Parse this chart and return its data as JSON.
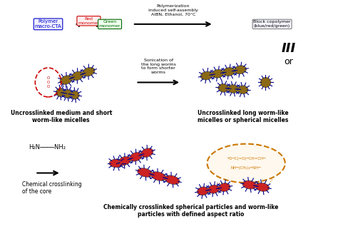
{
  "title": "",
  "bg_color": "#ffffff",
  "figsize": [
    4.74,
    3.21
  ],
  "dpi": 100,
  "top_reaction_arrow_text": "Polymerization\ninduced self-assembly\nAIBN, Ethanol, 70°C",
  "middle_arrow_text": "Sonication of\nthe long worms\nto form shorter\nworms",
  "bottom_arrow_text": "Chemical crosslinking\nof the core",
  "label_uncrosslinked_short": "Uncrosslinked medium and short\nworm-like micelles",
  "label_uncrosslinked_long": "Uncrosslinked long worm-like\nmicelles or spherical micelles",
  "label_crosslinked": "Chemically crosslinked spherical particles and worm-like\nparticles with defined aspect ratio",
  "roman_numeral": "III",
  "or_text": "or",
  "diamine_text": "H₂N————NH₂",
  "plus_signs": [
    "+",
    "+"
  ],
  "colors": {
    "black": "#000000",
    "blue": "#0000cc",
    "red": "#cc0000",
    "green": "#006600",
    "orange": "#cc7700",
    "dashed_red": "#cc0000",
    "dashed_orange": "#cc7700",
    "worm_body": "#8B6914",
    "worm_spines": "#00008B",
    "worm_core_red": "#cc0000",
    "arrow": "#000000"
  }
}
